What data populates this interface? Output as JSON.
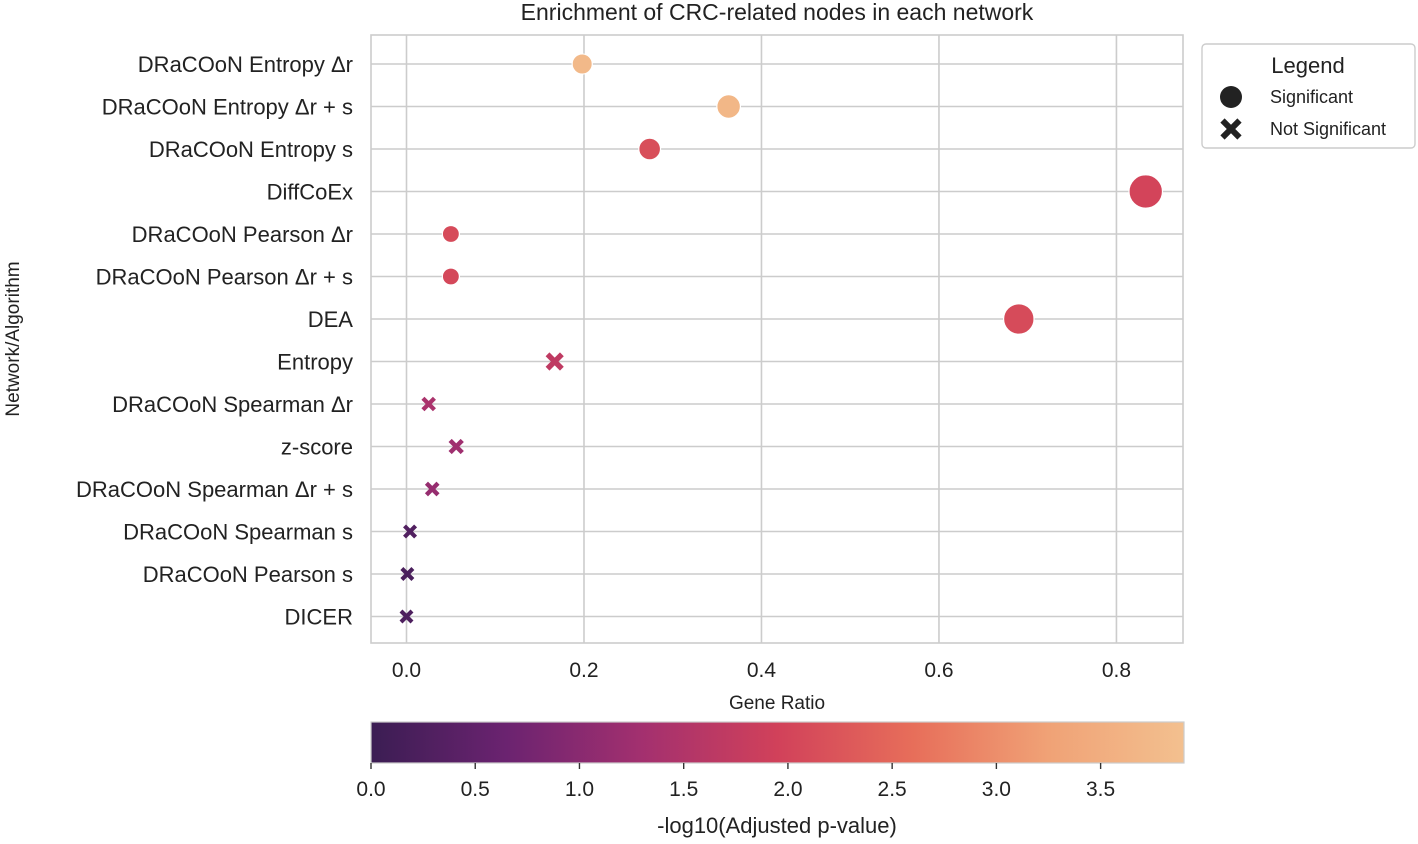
{
  "chart_data": {
    "type": "scatter",
    "title": "Enrichment of CRC-related nodes in each network",
    "xlabel": "Gene Ratio",
    "ylabel": "Network/Algorithm",
    "xlim": [
      -0.04,
      0.875
    ],
    "xticks": [
      0.0,
      0.2,
      0.4,
      0.6,
      0.8
    ],
    "xtick_labels": [
      "0.0",
      "0.2",
      "0.4",
      "0.6",
      "0.8"
    ],
    "grid": true,
    "categories": [
      "DRaCOoN Entropy Δr",
      "DRaCOoN Entropy Δr + s",
      "DRaCOoN Entropy s",
      "DiffCoEx",
      "DRaCOoN Pearson Δr",
      "DRaCOoN Pearson Δr + s",
      "DEA",
      "Entropy",
      "DRaCOoN Spearman Δr",
      "z-score",
      "DRaCOoN Spearman Δr + s",
      "DRaCOoN Spearman s",
      "DRaCOoN Pearson s",
      "DICER"
    ],
    "points": [
      {
        "category": "DRaCOoN Entropy Δr",
        "gene_ratio": 0.198,
        "neg_log10_adj_p": 3.75,
        "significant": true
      },
      {
        "category": "DRaCOoN Entropy Δr + s",
        "gene_ratio": 0.363,
        "neg_log10_adj_p": 3.7,
        "significant": true
      },
      {
        "category": "DRaCOoN Entropy s",
        "gene_ratio": 0.274,
        "neg_log10_adj_p": 2.15,
        "significant": true
      },
      {
        "category": "DiffCoEx",
        "gene_ratio": 0.833,
        "neg_log10_adj_p": 2.0,
        "significant": true
      },
      {
        "category": "DRaCOoN Pearson Δr",
        "gene_ratio": 0.05,
        "neg_log10_adj_p": 2.1,
        "significant": true
      },
      {
        "category": "DRaCOoN Pearson Δr + s",
        "gene_ratio": 0.05,
        "neg_log10_adj_p": 2.05,
        "significant": true
      },
      {
        "category": "DEA",
        "gene_ratio": 0.69,
        "neg_log10_adj_p": 2.1,
        "significant": true
      },
      {
        "category": "Entropy",
        "gene_ratio": 0.167,
        "neg_log10_adj_p": 1.7,
        "significant": false
      },
      {
        "category": "DRaCOoN Spearman Δr",
        "gene_ratio": 0.025,
        "neg_log10_adj_p": 1.4,
        "significant": false
      },
      {
        "category": "z-score",
        "gene_ratio": 0.056,
        "neg_log10_adj_p": 1.25,
        "significant": false
      },
      {
        "category": "DRaCOoN Spearman Δr + s",
        "gene_ratio": 0.029,
        "neg_log10_adj_p": 1.15,
        "significant": false
      },
      {
        "category": "DRaCOoN Spearman s",
        "gene_ratio": 0.004,
        "neg_log10_adj_p": 0.3,
        "significant": false
      },
      {
        "category": "DRaCOoN Pearson s",
        "gene_ratio": 0.001,
        "neg_log10_adj_p": 0.2,
        "significant": false
      },
      {
        "category": "DICER",
        "gene_ratio": 0.0,
        "neg_log10_adj_p": 0.25,
        "significant": false
      }
    ],
    "colorbar": {
      "label": "-log10(Adjusted p-value)",
      "range": [
        0.0,
        3.9
      ],
      "ticks": [
        0.0,
        0.5,
        1.0,
        1.5,
        2.0,
        2.5,
        3.0,
        3.5
      ],
      "tick_labels": [
        "0.0",
        "0.5",
        "1.0",
        "1.5",
        "2.0",
        "2.5",
        "3.0",
        "3.5"
      ],
      "colormap": [
        "#3b1d53",
        "#6b2370",
        "#a3306f",
        "#d1415a",
        "#e76e5a",
        "#f0a276",
        "#f3c08f"
      ]
    },
    "legend": {
      "title": "Legend",
      "placement": "outside-right-top",
      "entries": [
        {
          "label": "Significant",
          "marker": "circle"
        },
        {
          "label": "Not Significant",
          "marker": "x"
        }
      ]
    }
  }
}
